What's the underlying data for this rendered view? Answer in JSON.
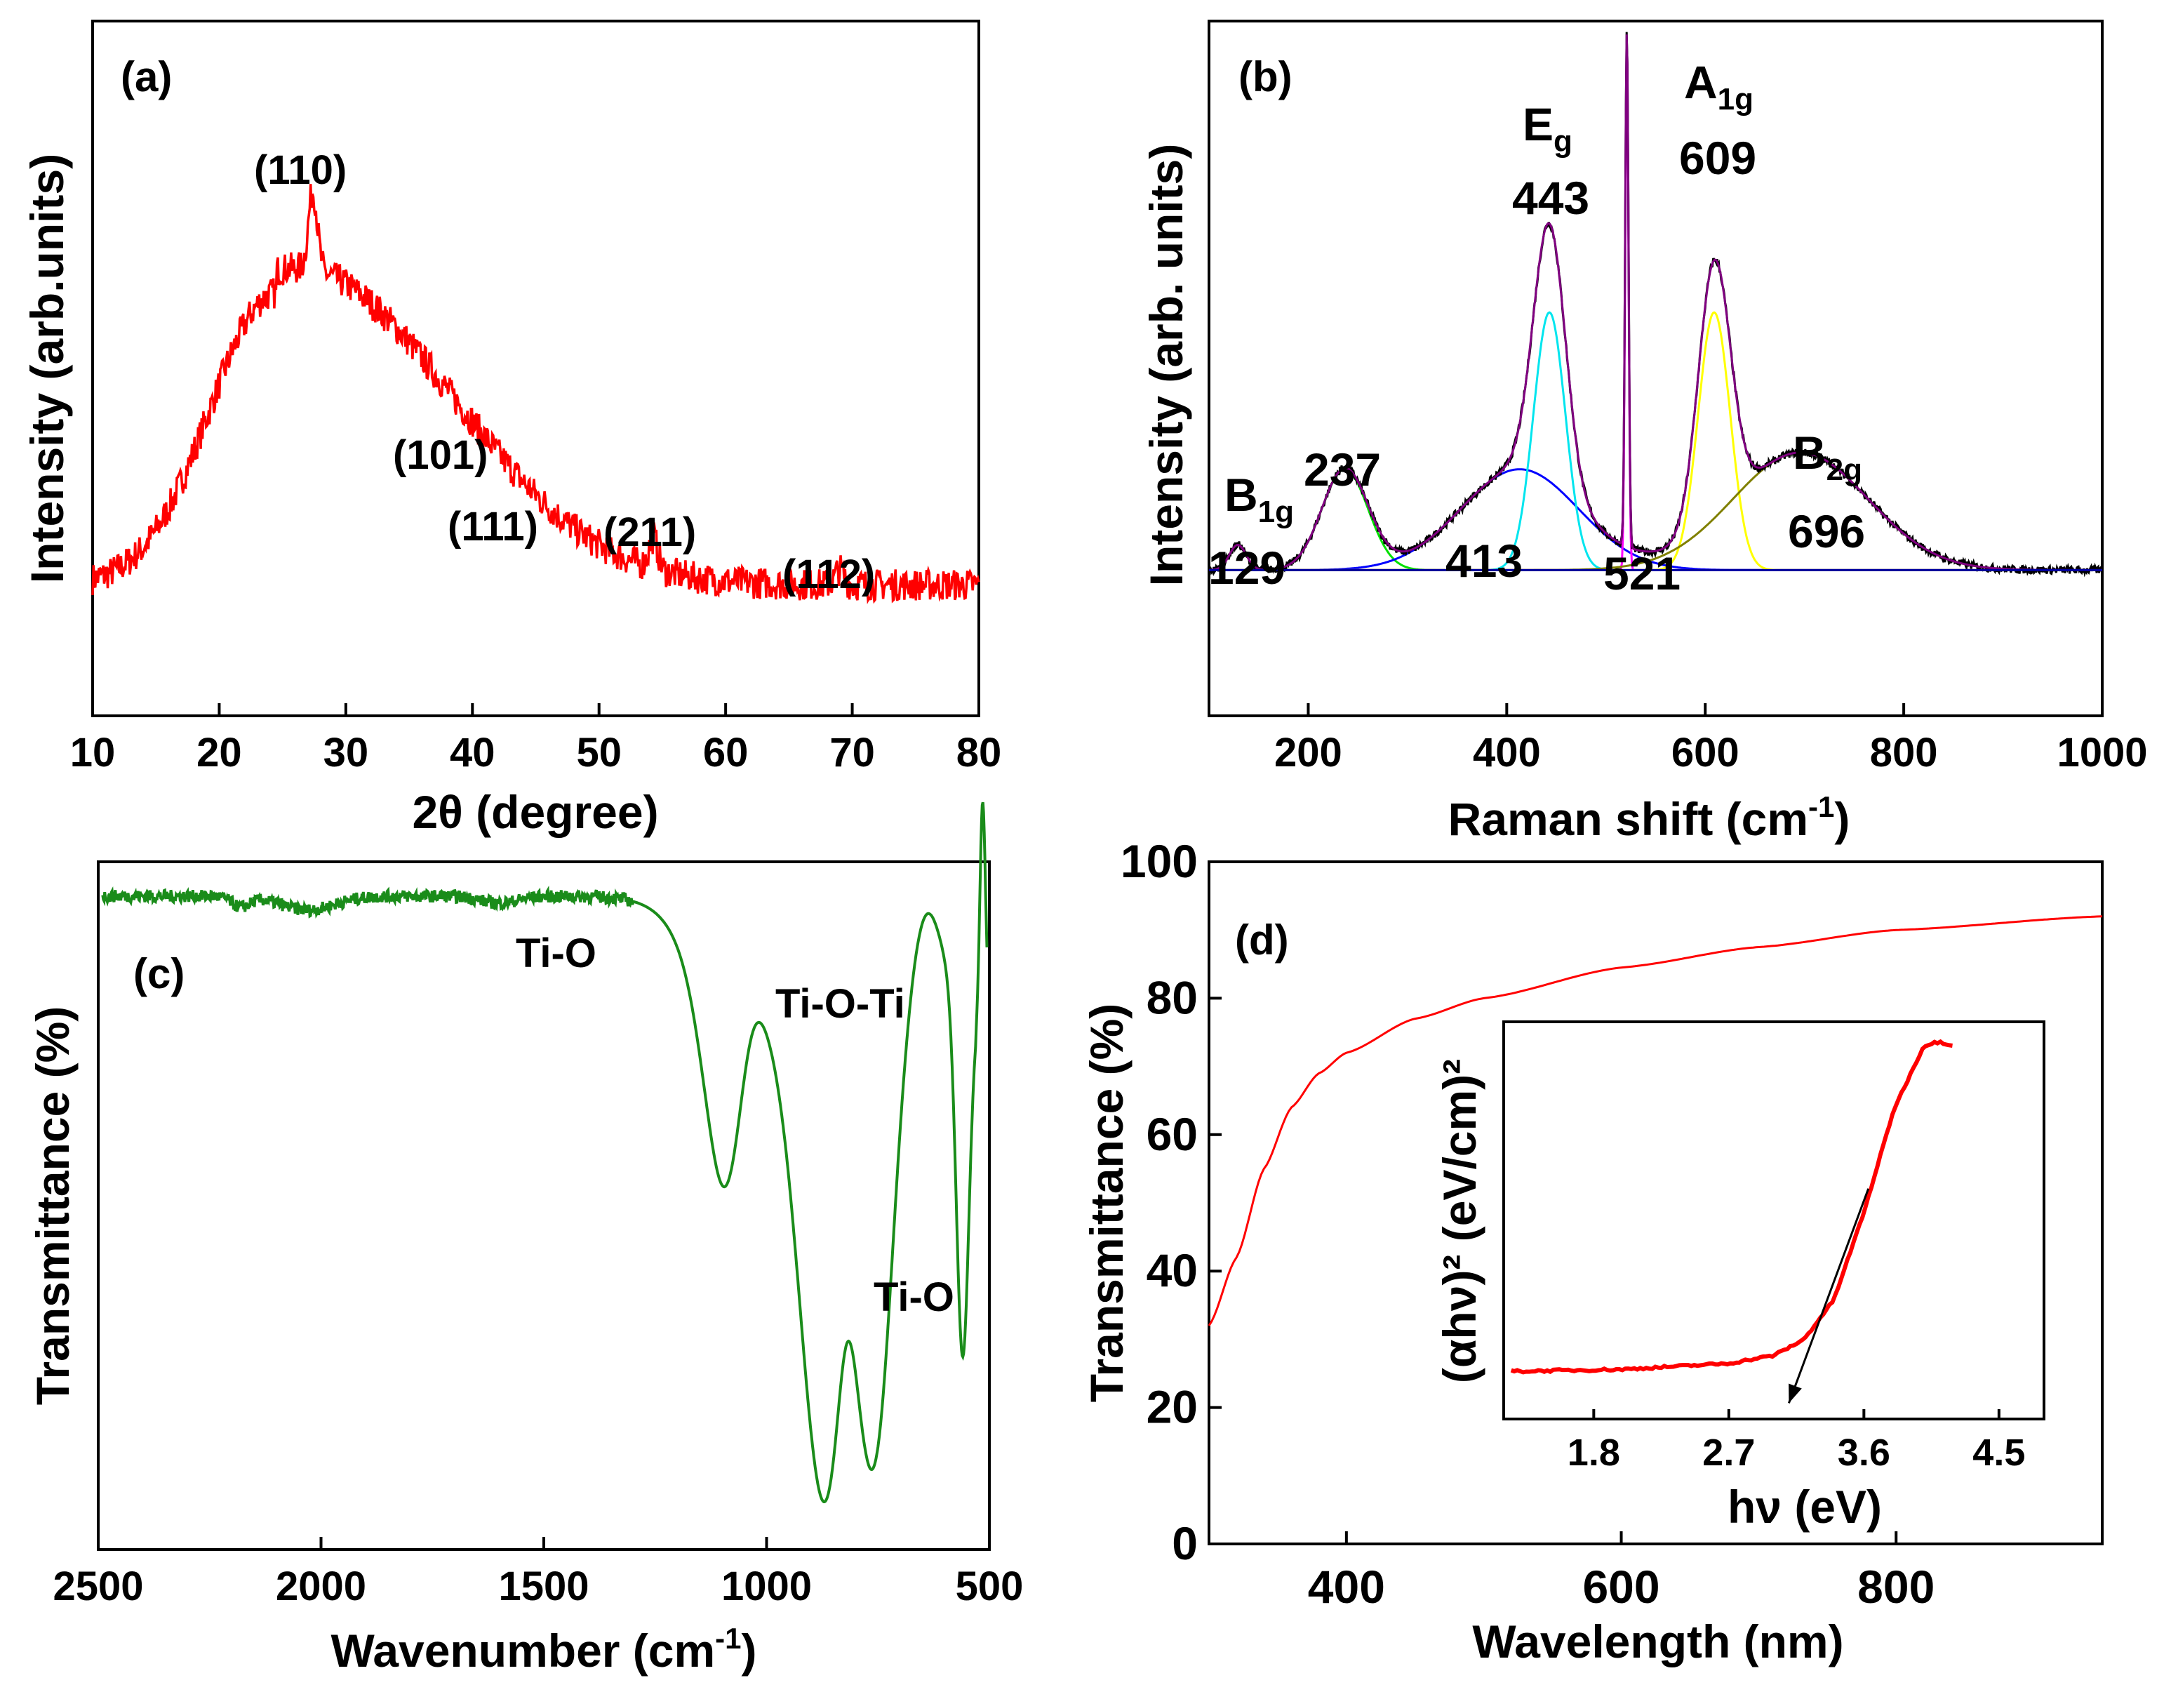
{
  "colors": {
    "xrd": "#ff0000",
    "ftir": "#1a8c1a",
    "uv": "#ff0000",
    "raman_data": "#000000",
    "raman_envelope": "#800080",
    "fit_b1g": "#ff0000",
    "fit_237": "#00e000",
    "fit_413": "#0000ff",
    "fit_eg": "#00e5ee",
    "fit_521": "#ff00ff",
    "fit_a1g": "#ffff00",
    "fit_b2g": "#808000",
    "baseline": "#0000a0"
  },
  "chart_data": [
    {
      "id": "a",
      "type": "line",
      "panel_label": "(a)",
      "xlabel": "2θ (degree)",
      "ylabel": "Intensity (arb.units)",
      "xlim": [
        10,
        80
      ],
      "ylim": [
        0,
        100
      ],
      "xticks": [
        10,
        20,
        30,
        40,
        50,
        60,
        70,
        80
      ],
      "yticks_shown": false,
      "broad_hump": {
        "center": 24.5,
        "amplitude": 58,
        "sigma_left": 5.2,
        "sigma_right": 11.5,
        "baseline": 6
      },
      "peaks": [
        {
          "label": "(110)",
          "position": 27.4,
          "height": 84
        },
        {
          "label": "(101)",
          "position": 36.1,
          "height": 38
        },
        {
          "label": "(111)",
          "position": 41.2,
          "height": 24
        },
        {
          "label": "(211)",
          "position": 54.3,
          "height": 20
        },
        {
          "label": "(112)",
          "position": 69.0,
          "height": 15
        }
      ]
    },
    {
      "id": "b",
      "type": "line",
      "panel_label": "(b)",
      "xlabel": "Raman shift (cm",
      "xlabel_sup": "-1",
      "xlabel_end": ")",
      "ylabel": "Intensity (arb. units)",
      "xlim": [
        100,
        1000
      ],
      "ylim": [
        0,
        100
      ],
      "xticks": [
        200,
        400,
        600,
        800,
        1000
      ],
      "yticks_shown": false,
      "baseline_level": 14,
      "fitted_peaks": [
        {
          "mode": "B1g",
          "position": 129,
          "height": 4.5,
          "width": 20
        },
        {
          "mode": "",
          "position": 237,
          "height": 18,
          "width": 55
        },
        {
          "mode": "",
          "position": 413,
          "height": 18,
          "width": 140
        },
        {
          "mode": "Eg",
          "position": 443,
          "height": 46,
          "width": 38
        },
        {
          "mode": "",
          "position": 521,
          "height": 92,
          "width": 4
        },
        {
          "mode": "A1g",
          "position": 609,
          "height": 46,
          "width": 38
        },
        {
          "mode": "B2g",
          "position": 696,
          "height": 21,
          "width": 160
        }
      ],
      "annotations": [
        {
          "main": "B",
          "sub": "1g",
          "value": "129"
        },
        {
          "value": "237"
        },
        {
          "main": "E",
          "sub": "g",
          "value": "443"
        },
        {
          "value": "413"
        },
        {
          "value": "521"
        },
        {
          "main": "A",
          "sub": "1g",
          "value": "609"
        },
        {
          "main": "B",
          "sub": "2g",
          "value": "696"
        }
      ]
    },
    {
      "id": "c",
      "type": "line",
      "panel_label": "(c)",
      "xlabel": "Wavenumber (cm",
      "xlabel_sup": "-1",
      "xlabel_end": ")",
      "ylabel": "Transmittance (%)",
      "xlim": [
        2500,
        500
      ],
      "ylim": [
        0,
        100
      ],
      "xticks": [
        2500,
        2000,
        1500,
        1000,
        500
      ],
      "yticks_shown": false,
      "plateau": 95,
      "bands": [
        {
          "position": 1090,
          "depth": 30,
          "width": 45
        },
        {
          "position": 870,
          "depth": 72,
          "width": 55
        },
        {
          "position": 755,
          "depth": 58,
          "width": 38
        },
        {
          "position": 560,
          "depth": 52,
          "width": 14
        }
      ],
      "annotations": [
        "Ti-O",
        "Ti-O-Ti",
        "Ti-O"
      ]
    },
    {
      "id": "d",
      "type": "line",
      "panel_label": "(d)",
      "xlabel": "Wavelength (nm)",
      "ylabel": "Transmittance (%)",
      "xlim": [
        300,
        950
      ],
      "ylim": [
        0,
        100
      ],
      "xticks": [
        400,
        600,
        800
      ],
      "yticks": [
        0,
        20,
        40,
        60,
        80,
        100
      ],
      "curve": {
        "x": [
          300,
          320,
          340,
          360,
          380,
          400,
          450,
          500,
          600,
          700,
          800,
          950
        ],
        "y": [
          32,
          42,
          55,
          64,
          69,
          72,
          77,
          80,
          84.5,
          87.5,
          90,
          92
        ]
      },
      "inset": {
        "xlabel": "hν (eV)",
        "ylabel": "(αhν)² (eV/cm)²",
        "xlim": [
          1.2,
          4.8
        ],
        "ylim": [
          0,
          100
        ],
        "xticks": [
          1.8,
          2.7,
          3.6,
          4.5
        ],
        "curve": {
          "x": [
            1.25,
            2.0,
            2.7,
            3.0,
            3.2,
            3.4,
            3.6,
            3.8,
            4.0,
            4.1,
            4.2
          ],
          "y": [
            12,
            12.5,
            14,
            16,
            20,
            30,
            52,
            78,
            94,
            95,
            94
          ]
        },
        "tangent": {
          "from": [
            3.63,
            58
          ],
          "to": [
            3.1,
            4
          ]
        }
      }
    }
  ]
}
